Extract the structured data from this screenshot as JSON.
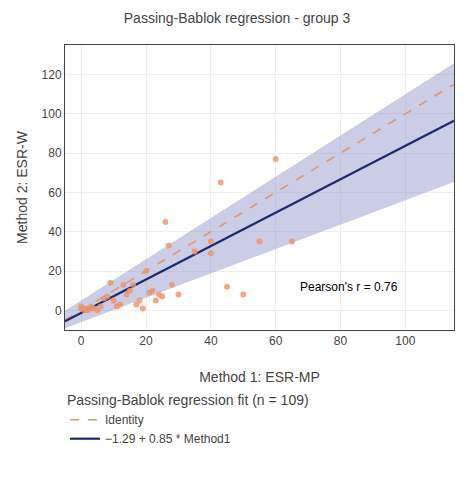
{
  "chart_data": {
    "type": "scatter",
    "title": "Passing-Bablok regression - group 3",
    "xlabel": "Method 1: ESR-MP",
    "ylabel": "Method 2: ESR-W",
    "xlim": [
      -5,
      115
    ],
    "ylim": [
      -10,
      135
    ],
    "xticks": [
      0,
      20,
      40,
      60,
      80,
      100
    ],
    "yticks": [
      0,
      20,
      40,
      60,
      80,
      100,
      120
    ],
    "grid": true,
    "legend": "bottom",
    "legend_title": "Passing-Bablok regression fit (n = 109)",
    "annotations": [
      "Pearson's r = 0.76"
    ],
    "series": [
      {
        "type": "band",
        "color": "#8b90c8",
        "x": [
          -5,
          115
        ],
        "lower": [
          -9.1,
          65.3
        ],
        "upper": [
          -0.25,
          125.75
        ]
      },
      {
        "name": "Identity",
        "type": "line",
        "line_style": "dashed",
        "color": "#e8956d",
        "x": [
          -5,
          115
        ],
        "values": [
          -5,
          115
        ]
      },
      {
        "name": "−1.29 + 0.85 * Method1",
        "type": "line",
        "line_style": "solid",
        "color": "#1a2a6c",
        "x": [
          -5,
          115
        ],
        "values": [
          -5.54,
          96.46
        ]
      },
      {
        "type": "scatter",
        "marker": "circle",
        "color": "#e8956d",
        "x": [
          0,
          0,
          1,
          1,
          2,
          3,
          3,
          4,
          5,
          6,
          7,
          8,
          9,
          10,
          11,
          12,
          13,
          14,
          15,
          16,
          17,
          18,
          19,
          20,
          21,
          22,
          23,
          24,
          25,
          26,
          27,
          28,
          30,
          35,
          40,
          40,
          43,
          45,
          50,
          55,
          60,
          65
        ],
        "values": [
          1,
          2,
          1,
          0,
          0,
          1,
          2,
          1,
          0,
          2,
          6,
          7,
          14,
          5,
          2,
          3,
          13,
          8,
          10,
          13,
          3,
          5,
          1,
          20,
          9,
          10,
          5,
          8,
          7,
          45,
          33,
          13,
          8,
          30,
          29,
          35,
          65,
          12,
          8,
          35,
          77,
          35
        ]
      }
    ]
  }
}
